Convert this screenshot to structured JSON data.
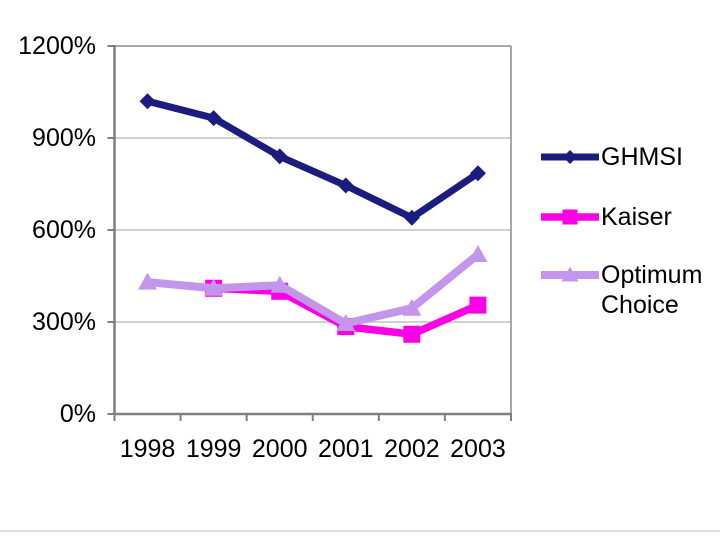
{
  "chart_data": {
    "type": "line",
    "categories": [
      "1998",
      "1999",
      "2000",
      "2001",
      "2002",
      "2003"
    ],
    "series": [
      {
        "name": "GHMSI",
        "color": "#1C1C7E",
        "marker": "diamond",
        "values": [
          1020,
          965,
          840,
          745,
          640,
          785
        ]
      },
      {
        "name": "Kaiser",
        "color": "#FA00E6",
        "marker": "square",
        "values": [
          null,
          410,
          400,
          285,
          260,
          355
        ]
      },
      {
        "name": "Optimum Choice",
        "color": "#C396EC",
        "marker": "triangle",
        "values": [
          430,
          410,
          420,
          295,
          345,
          520
        ]
      }
    ],
    "title": "",
    "xlabel": "",
    "ylabel": "",
    "ylim": [
      0,
      1200
    ],
    "ytick_interval": 300,
    "ytick_labels": [
      "0%",
      "300%",
      "600%",
      "900%",
      "1200%"
    ],
    "grid": true,
    "legend_position": "right",
    "axis_color": "#7F7F7F",
    "grid_color": "#C0C0C0",
    "plot_border_color": "#8C8C8C",
    "text_color": "#000000"
  }
}
